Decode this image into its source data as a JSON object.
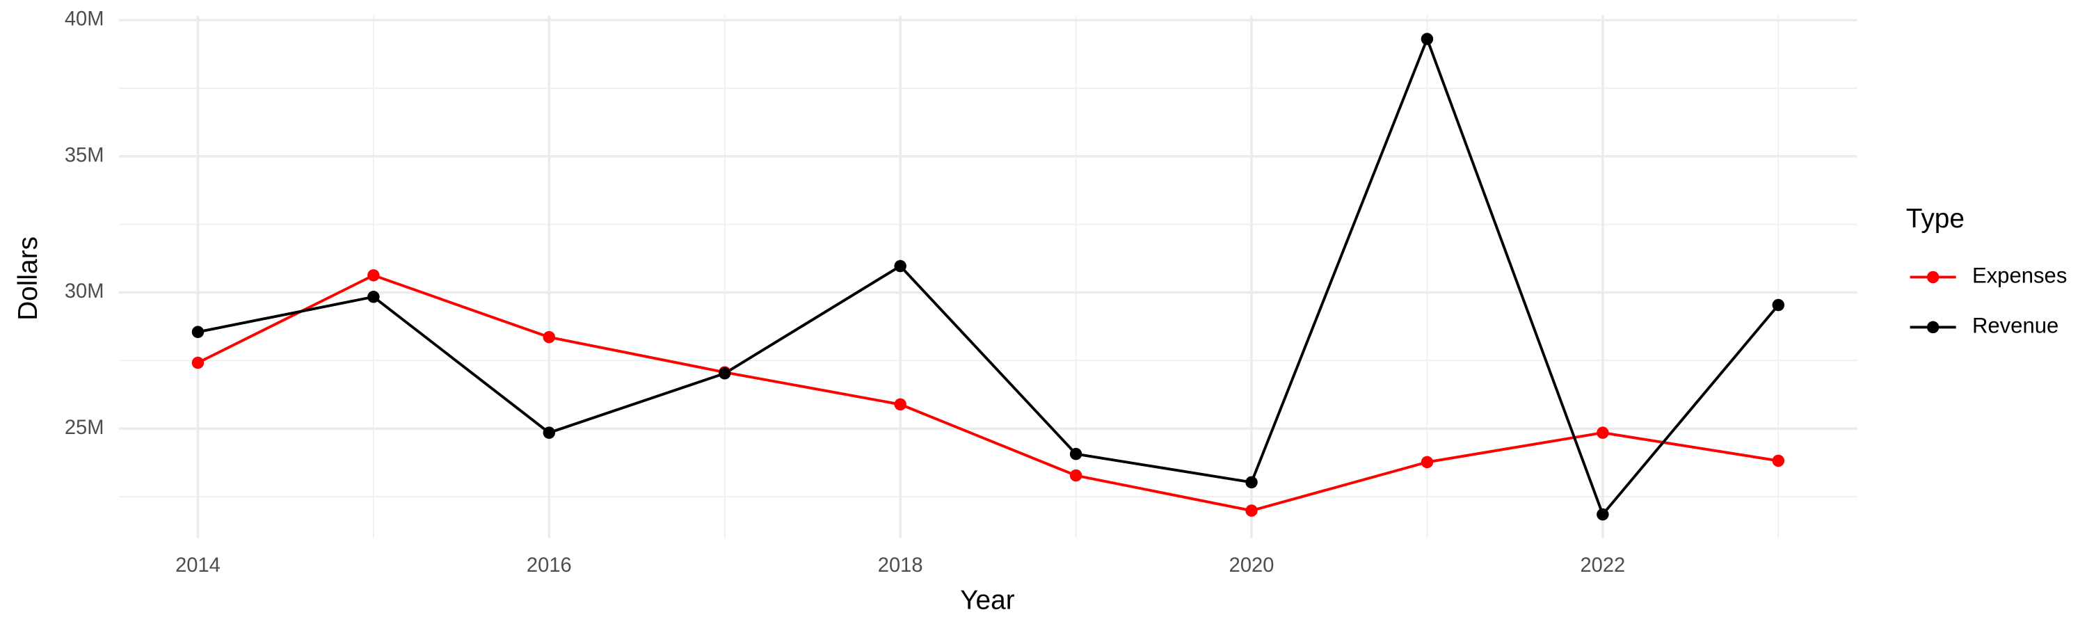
{
  "chart_data": {
    "type": "line",
    "x_label": "Year",
    "y_label": "Dollars",
    "x": [
      2014,
      2015,
      2016,
      2017,
      2018,
      2019,
      2020,
      2021,
      2022,
      2023
    ],
    "series": [
      {
        "name": "Expenses",
        "color": "#ff0000",
        "values": [
          27420000,
          30630000,
          28360000,
          27070000,
          25890000,
          23280000,
          21990000,
          23770000,
          24850000,
          23820000
        ]
      },
      {
        "name": "Revenue",
        "color": "#000000",
        "values": [
          28550000,
          29840000,
          24850000,
          27030000,
          30970000,
          24070000,
          23030000,
          39310000,
          21850000,
          29540000
        ]
      }
    ],
    "xlim": [
      2013.55,
      2023.45
    ],
    "ylim": [
      20980000,
      40170000
    ],
    "xticks": [
      2014,
      2016,
      2018,
      2020,
      2022
    ],
    "yticks": [
      {
        "value": 25000000,
        "label": "25M"
      },
      {
        "value": 30000000,
        "label": "30M"
      },
      {
        "value": 35000000,
        "label": "35M"
      },
      {
        "value": 40000000,
        "label": "40M"
      }
    ],
    "grid": true,
    "minor_grid": true,
    "legend_title": "Type",
    "legend_position": "right"
  }
}
